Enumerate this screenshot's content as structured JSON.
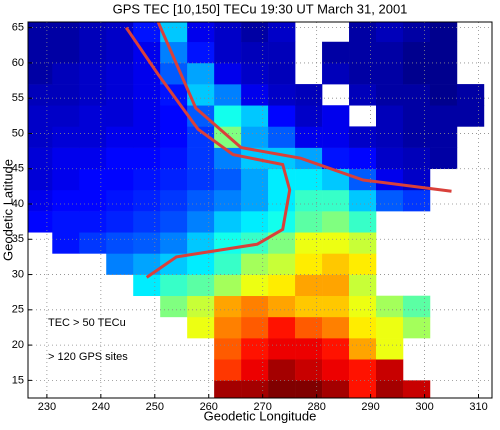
{
  "chart_data": {
    "type": "heatmap",
    "title": "GPS TEC [10,150] TECu    19:30 UT  March 31, 2001",
    "xlabel": "Geodetic Longitude",
    "ylabel": "Geodetic Latitude",
    "annotations": [
      "TEC > 50 TECu",
      "> 120 GPS sites"
    ],
    "xlim": [
      226.5,
      312.5
    ],
    "ylim": [
      12.5,
      65.8
    ],
    "xticks": [
      230,
      240,
      250,
      260,
      270,
      280,
      290,
      300,
      310
    ],
    "yticks": [
      15,
      20,
      25,
      30,
      35,
      40,
      45,
      50,
      55,
      60,
      65
    ],
    "grid": true,
    "colormap": "jet",
    "clim": [
      10,
      150
    ],
    "xbins": [
      226,
      231,
      236,
      241,
      246,
      251,
      256,
      261,
      266,
      271,
      276,
      281,
      286,
      291,
      296,
      301,
      306,
      311,
      316
    ],
    "ybins": [
      12,
      15,
      18,
      21,
      24,
      27,
      30,
      33,
      36,
      39,
      42,
      45,
      48,
      51,
      54,
      57,
      60,
      63,
      66
    ],
    "values": [
      [
        null,
        null,
        null,
        null,
        null,
        null,
        null,
        145,
        145,
        150,
        150,
        145,
        130,
        145,
        140,
        null,
        null,
        null
      ],
      [
        null,
        null,
        null,
        null,
        null,
        null,
        null,
        125,
        135,
        145,
        140,
        135,
        130,
        140,
        null,
        null,
        null,
        null
      ],
      [
        null,
        null,
        null,
        null,
        null,
        null,
        null,
        120,
        130,
        135,
        135,
        130,
        110,
        95,
        null,
        null,
        null,
        null
      ],
      [
        null,
        null,
        null,
        null,
        null,
        null,
        95,
        115,
        120,
        130,
        120,
        115,
        100,
        95,
        85,
        null,
        null,
        null
      ],
      [
        null,
        null,
        null,
        null,
        null,
        80,
        90,
        110,
        115,
        110,
        105,
        105,
        95,
        85,
        75,
        null,
        null,
        null
      ],
      [
        null,
        null,
        null,
        null,
        60,
        70,
        75,
        85,
        95,
        100,
        110,
        110,
        90,
        null,
        null,
        null,
        null,
        null
      ],
      [
        null,
        null,
        null,
        45,
        50,
        55,
        60,
        70,
        85,
        90,
        100,
        105,
        100,
        null,
        null,
        null,
        null,
        null
      ],
      [
        null,
        30,
        35,
        38,
        40,
        45,
        55,
        65,
        70,
        80,
        95,
        95,
        90,
        null,
        null,
        null,
        null,
        null
      ],
      [
        28,
        30,
        30,
        32,
        35,
        38,
        45,
        55,
        60,
        65,
        75,
        80,
        70,
        null,
        null,
        null,
        null,
        null
      ],
      [
        25,
        28,
        28,
        30,
        32,
        35,
        40,
        45,
        50,
        60,
        70,
        70,
        55,
        40,
        35,
        null,
        null,
        null
      ],
      [
        22,
        25,
        28,
        28,
        30,
        32,
        35,
        40,
        50,
        60,
        60,
        55,
        40,
        25,
        20,
        null,
        null,
        null
      ],
      [
        22,
        25,
        25,
        28,
        28,
        30,
        35,
        45,
        55,
        55,
        50,
        30,
        28,
        20,
        18,
        15,
        null,
        null
      ],
      [
        20,
        22,
        22,
        25,
        25,
        28,
        35,
        80,
        50,
        40,
        25,
        25,
        20,
        18,
        15,
        15,
        null,
        null
      ],
      [
        20,
        20,
        22,
        22,
        25,
        28,
        40,
        65,
        55,
        28,
        20,
        25,
        null,
        18,
        15,
        15,
        15,
        null
      ],
      [
        18,
        18,
        20,
        22,
        25,
        30,
        55,
        45,
        25,
        20,
        18,
        null,
        18,
        15,
        15,
        12,
        15,
        null
      ],
      [
        15,
        18,
        20,
        22,
        25,
        40,
        50,
        25,
        20,
        18,
        null,
        18,
        15,
        15,
        12,
        12,
        null,
        null
      ],
      [
        15,
        15,
        18,
        20,
        25,
        45,
        30,
        20,
        18,
        18,
        null,
        15,
        15,
        15,
        12,
        12,
        null,
        null
      ],
      [
        15,
        15,
        18,
        20,
        30,
        55,
        25,
        20,
        15,
        20,
        null,
        null,
        15,
        18,
        15,
        12,
        null,
        null
      ]
    ],
    "lines": [
      {
        "color": "#d9403a",
        "x": [
          250.5,
          257.6,
          266,
          277,
          288.6,
          305
        ],
        "y": [
          66,
          53.6,
          48,
          46.5,
          43.4,
          41.8
        ]
      },
      {
        "color": "#d9403a",
        "x": [
          244.7,
          250.6,
          258,
          264.5,
          273.7,
          275,
          273.7,
          269,
          254,
          248.5
        ],
        "y": [
          65,
          58.4,
          50.6,
          47,
          45.6,
          42,
          36.4,
          34.3,
          32.5,
          29.6
        ]
      }
    ]
  }
}
